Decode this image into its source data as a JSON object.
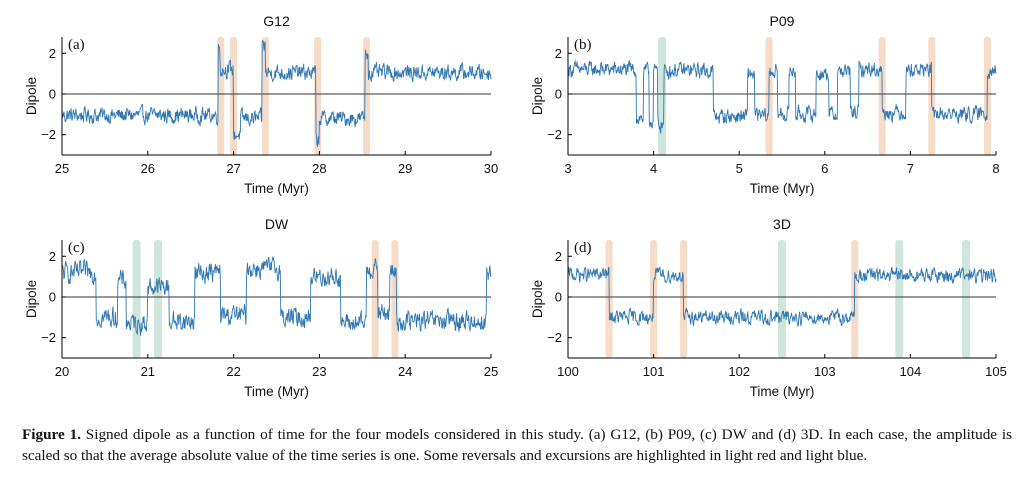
{
  "figure": {
    "caption_label": "Figure 1.",
    "caption_text": " Signed dipole as a function of time for the four models considered in this study. (a) G12, (b) P09, (c) DW and (d) 3D. In each case, the amplitude is scaled so that the average absolute value of the time series is one. Some reversals and excursions are highlighted in light red and light blue."
  },
  "colors": {
    "line": "#2f77b4",
    "reversal": "#f6dcc8",
    "excursion": "#cfe6dc",
    "axis": "#000000"
  },
  "chart_data": [
    {
      "type": "line",
      "panel": "(a)",
      "title": "G12",
      "xlabel": "Time (Myr)",
      "ylabel": "Dipole",
      "xlim": [
        25,
        30
      ],
      "ylim": [
        -3,
        2.8
      ],
      "xticks": [
        25,
        26,
        27,
        28,
        29,
        30
      ],
      "yticks": [
        -2,
        0,
        2
      ],
      "reversals": [
        26.85,
        27.0,
        27.37,
        27.98,
        28.55
      ],
      "excursions": [],
      "series": {
        "segments": [
          [
            25.0,
            26.82,
            -1.05
          ],
          [
            26.82,
            26.84,
            2.3
          ],
          [
            26.84,
            27.0,
            1.2
          ],
          [
            27.0,
            27.08,
            -2.0
          ],
          [
            27.08,
            27.33,
            -1.2
          ],
          [
            27.33,
            27.37,
            2.4
          ],
          [
            27.37,
            27.96,
            1.05
          ],
          [
            27.96,
            28.0,
            -2.3
          ],
          [
            28.0,
            28.53,
            -1.2
          ],
          [
            28.53,
            28.57,
            2.0
          ],
          [
            28.57,
            30.0,
            1.05
          ]
        ],
        "noise": 0.33
      }
    },
    {
      "type": "line",
      "panel": "(b)",
      "title": "P09",
      "xlabel": "Time (Myr)",
      "ylabel": "Dipole",
      "xlim": [
        3,
        8
      ],
      "ylim": [
        -3,
        2.8
      ],
      "xticks": [
        3,
        4,
        5,
        6,
        7,
        8
      ],
      "yticks": [
        -2,
        0,
        2
      ],
      "reversals": [
        5.35,
        6.67,
        7.25,
        7.9
      ],
      "excursions": [
        4.1
      ],
      "series": {
        "segments": [
          [
            3.0,
            3.8,
            1.2
          ],
          [
            3.8,
            3.88,
            -1.2
          ],
          [
            3.88,
            3.95,
            1.1
          ],
          [
            3.95,
            4.0,
            -1.3
          ],
          [
            4.0,
            4.05,
            1.1
          ],
          [
            4.05,
            4.12,
            -1.5
          ],
          [
            4.12,
            4.7,
            1.15
          ],
          [
            4.7,
            5.1,
            -1.1
          ],
          [
            5.1,
            5.18,
            1.0
          ],
          [
            5.18,
            5.35,
            -1.1
          ],
          [
            5.35,
            5.45,
            1.1
          ],
          [
            5.45,
            5.58,
            -1.0
          ],
          [
            5.58,
            5.66,
            1.1
          ],
          [
            5.66,
            5.9,
            -1.0
          ],
          [
            5.9,
            6.05,
            1.0
          ],
          [
            6.05,
            6.15,
            -1.0
          ],
          [
            6.15,
            6.3,
            1.1
          ],
          [
            6.3,
            6.4,
            -0.9
          ],
          [
            6.4,
            6.67,
            1.2
          ],
          [
            6.67,
            6.95,
            -0.9
          ],
          [
            6.95,
            7.25,
            1.2
          ],
          [
            7.25,
            7.9,
            -1.0
          ],
          [
            7.9,
            8.0,
            1.2
          ]
        ],
        "noise": 0.32
      }
    },
    {
      "type": "line",
      "panel": "(c)",
      "title": "DW",
      "xlabel": "Time (Myr)",
      "ylabel": "Dipole",
      "xlim": [
        20,
        25
      ],
      "ylim": [
        -3,
        2.8
      ],
      "xticks": [
        20,
        21,
        22,
        23,
        24,
        25
      ],
      "yticks": [
        -2,
        0,
        2
      ],
      "reversals": [
        23.65,
        23.88
      ],
      "excursions": [
        20.87,
        21.12
      ],
      "series": {
        "segments": [
          [
            20.0,
            20.4,
            1.2
          ],
          [
            20.4,
            20.65,
            -1.0
          ],
          [
            20.65,
            20.75,
            0.8
          ],
          [
            20.75,
            21.0,
            -1.3
          ],
          [
            21.0,
            21.25,
            0.5
          ],
          [
            21.25,
            21.55,
            -1.2
          ],
          [
            21.55,
            21.85,
            1.2
          ],
          [
            21.85,
            22.15,
            -0.9
          ],
          [
            22.15,
            22.55,
            1.4
          ],
          [
            22.55,
            22.9,
            -1.0
          ],
          [
            22.9,
            23.25,
            1.0
          ],
          [
            23.25,
            23.55,
            -1.3
          ],
          [
            23.55,
            23.68,
            1.4
          ],
          [
            23.68,
            23.82,
            -0.8
          ],
          [
            23.82,
            23.9,
            1.2
          ],
          [
            23.9,
            24.95,
            -1.2
          ],
          [
            24.95,
            25.0,
            1.2
          ]
        ],
        "noise": 0.42
      }
    },
    {
      "type": "line",
      "panel": "(d)",
      "title": "3D",
      "xlabel": "Time (Myr)",
      "ylabel": "Dipole",
      "xlim": [
        100,
        105
      ],
      "ylim": [
        -3,
        2.8
      ],
      "xticks": [
        100,
        101,
        102,
        103,
        104,
        105
      ],
      "yticks": [
        -2,
        0,
        2
      ],
      "reversals": [
        100.48,
        101.0,
        101.35,
        103.35
      ],
      "excursions": [
        102.5,
        103.87,
        104.65
      ],
      "series": {
        "segments": [
          [
            100.0,
            100.48,
            1.1
          ],
          [
            100.48,
            101.0,
            -1.0
          ],
          [
            101.0,
            101.35,
            1.05
          ],
          [
            101.35,
            103.35,
            -1.0
          ],
          [
            103.35,
            105.0,
            1.05
          ]
        ],
        "noise": 0.3
      }
    }
  ]
}
